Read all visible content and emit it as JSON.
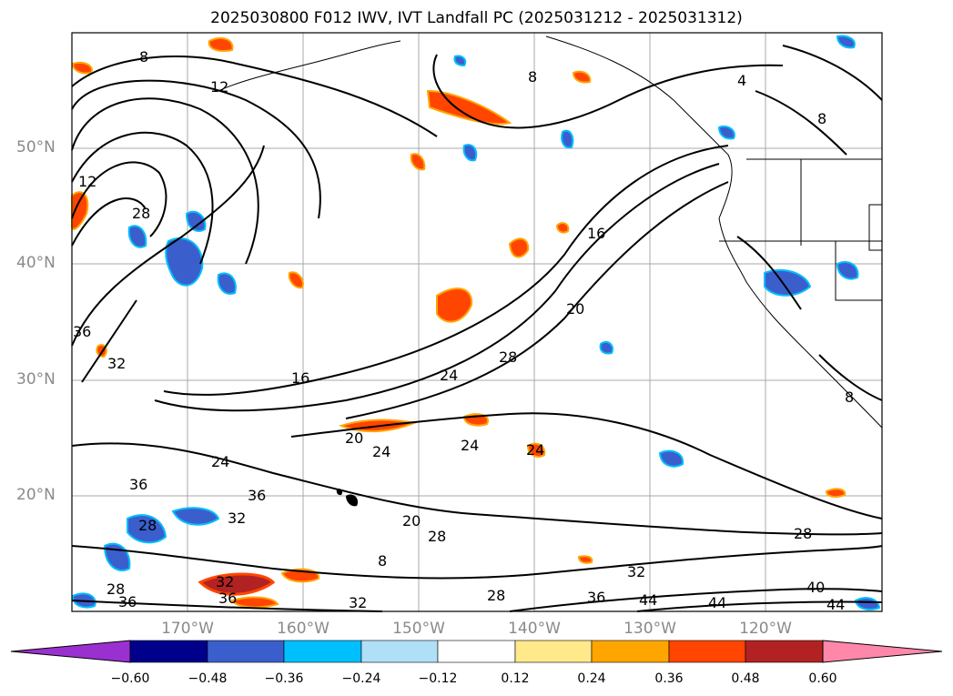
{
  "title": "2025030800 F012 IWV, IVT Landfall PC (2025031212 - 2025031312)",
  "map": {
    "lat_labels": [
      "50°N",
      "40°N",
      "30°N",
      "20°N"
    ],
    "lon_labels": [
      "170°W",
      "160°W",
      "150°W",
      "140°W",
      "130°W",
      "120°W"
    ],
    "contour_labels": [
      "8",
      "12",
      "4",
      "8",
      "8",
      "12",
      "28",
      "16",
      "20",
      "36",
      "32",
      "16",
      "24",
      "28",
      "20",
      "24",
      "24",
      "24",
      "24",
      "36",
      "36",
      "32",
      "28",
      "20",
      "28",
      "28",
      "32",
      "36",
      "40",
      "44",
      "44",
      "44",
      "28",
      "36",
      "32",
      "36",
      "32",
      "28",
      "8",
      "8"
    ]
  },
  "colorbar": {
    "ticks": [
      "−0.60",
      "−0.48",
      "−0.36",
      "−0.24",
      "−0.12",
      "0.12",
      "0.24",
      "0.36",
      "0.48",
      "0.60"
    ],
    "colors": [
      "#9b30d0",
      "#00008b",
      "#3a5fcd",
      "#00bfff",
      "#b0e0f8",
      "#ffffff",
      "#ffe98a",
      "#ffa500",
      "#ff4500",
      "#b22222",
      "#ff88aa"
    ]
  }
}
